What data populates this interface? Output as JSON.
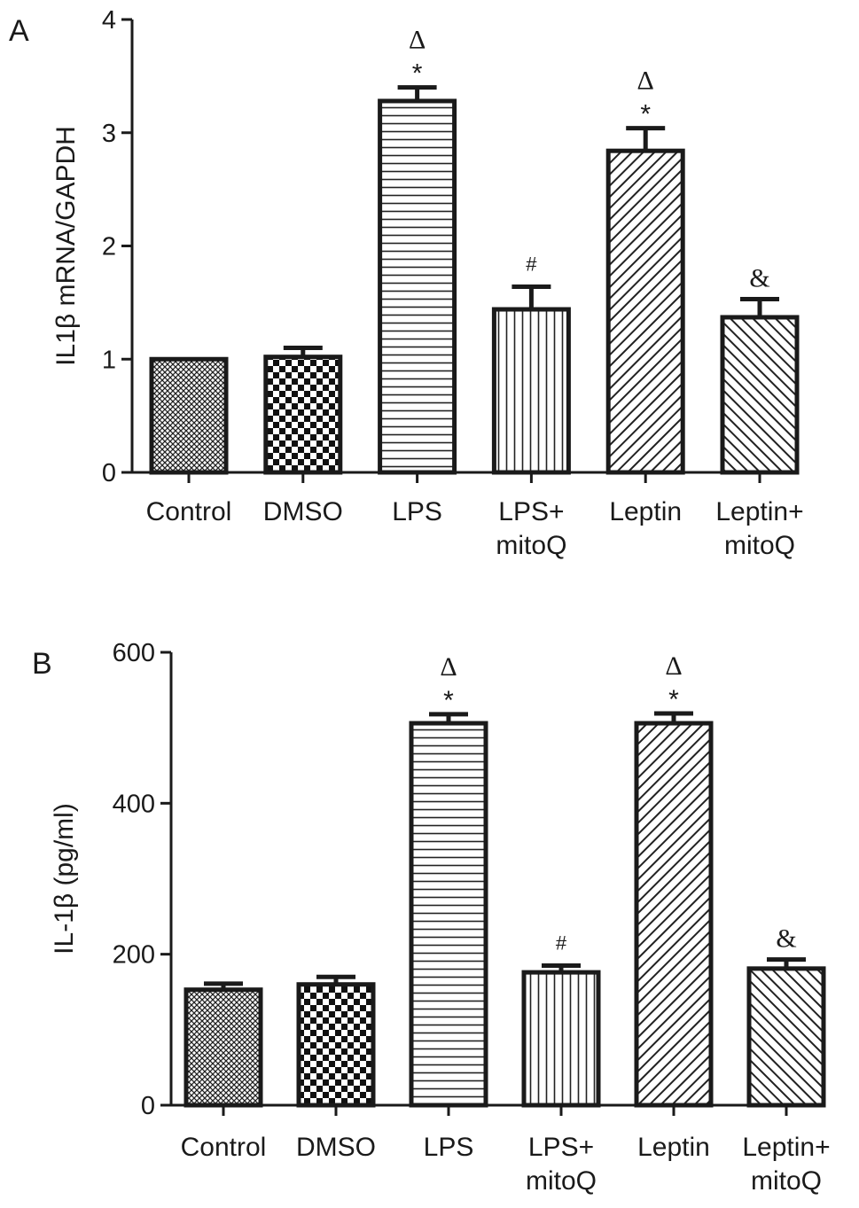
{
  "chart_data": [
    {
      "panel": "A",
      "type": "bar",
      "ylabel": "IL1β mRNA/GAPDH",
      "ylim": [
        0,
        4
      ],
      "yticks": [
        0,
        1,
        2,
        3,
        4
      ],
      "categories": [
        "Control",
        "DMSO",
        "LPS",
        "LPS+\nmitoQ",
        "Leptin",
        "Leptin+\nmitoQ"
      ],
      "values": [
        1.0,
        1.02,
        3.28,
        1.44,
        2.84,
        1.37
      ],
      "errors": [
        0.0,
        0.08,
        0.12,
        0.2,
        0.2,
        0.16
      ],
      "annotations": [
        "",
        "",
        "Δ\n*",
        "#",
        "Δ\n*",
        "&"
      ],
      "patterns": [
        "crosshatch-fine",
        "checker",
        "horizontal",
        "vertical",
        "diagonal-right",
        "diagonal-left"
      ]
    },
    {
      "panel": "B",
      "type": "bar",
      "ylabel": "IL-1β (pg/ml)",
      "ylim": [
        0,
        600
      ],
      "yticks": [
        0,
        200,
        400,
        600
      ],
      "categories": [
        "Control",
        "DMSO",
        "LPS",
        "LPS+\nmitoQ",
        "Leptin",
        "Leptin+\nmitoQ"
      ],
      "values": [
        153,
        160,
        506,
        176,
        506,
        181
      ],
      "errors": [
        8,
        10,
        12,
        9,
        13,
        12
      ],
      "annotations": [
        "",
        "",
        "Δ\n*",
        "#",
        "Δ\n*",
        "&"
      ],
      "patterns": [
        "crosshatch-fine",
        "checker",
        "horizontal",
        "vertical",
        "diagonal-right",
        "diagonal-left"
      ]
    }
  ]
}
